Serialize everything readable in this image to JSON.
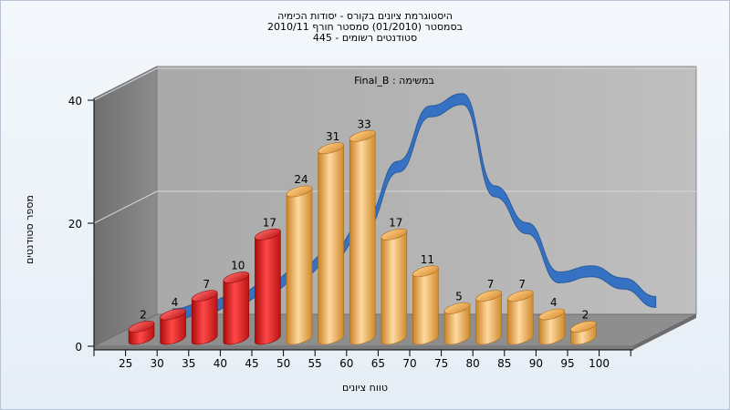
{
  "chart_data": {
    "type": "bar",
    "title": [
      "היסטוגרמת ציונים בקורס - יסודות הכימיה",
      "בסמסטר  (01/2010)  סמסטר חורף 2010/11",
      "445 - סטודנטים רשומים"
    ],
    "subtitle": "Final_B : במשימה",
    "xlabel": "טווח ציונים",
    "ylabel": "מספר סטודנטים",
    "x_ticks": [
      "25",
      "30",
      "35",
      "40",
      "45",
      "50",
      "55",
      "60",
      "65",
      "70",
      "75",
      "80",
      "85",
      "90",
      "95",
      "100"
    ],
    "y_ticks": [
      "0",
      "20",
      "40"
    ],
    "ylim": [
      0,
      40
    ],
    "bins": [
      {
        "label": "2",
        "value": 2,
        "color": "red"
      },
      {
        "label": "4",
        "value": 4,
        "color": "red"
      },
      {
        "label": "7",
        "value": 7,
        "color": "red"
      },
      {
        "label": "10",
        "value": 10,
        "color": "red"
      },
      {
        "label": "17",
        "value": 17,
        "color": "red"
      },
      {
        "label": "24",
        "value": 24,
        "color": "orange"
      },
      {
        "label": "31",
        "value": 31,
        "color": "orange"
      },
      {
        "label": "33",
        "value": 33,
        "color": "orange"
      },
      {
        "label": "17",
        "value": 17,
        "color": "orange"
      },
      {
        "label": "11",
        "value": 11,
        "color": "orange"
      },
      {
        "label": "5",
        "value": 5,
        "color": "orange"
      },
      {
        "label": "7",
        "value": 7,
        "color": "orange"
      },
      {
        "label": "7",
        "value": 7,
        "color": "orange"
      },
      {
        "label": "4",
        "value": 4,
        "color": "orange"
      },
      {
        "label": "2",
        "value": 2,
        "color": "orange"
      }
    ],
    "curve": [
      0,
      1,
      2.5,
      4.5,
      7,
      10,
      15,
      24,
      33,
      35,
      20,
      14,
      6,
      7,
      5,
      2
    ],
    "grid": true,
    "legend": "none",
    "colors": {
      "fail": "#e02020",
      "pass": "#e8a848",
      "curve": "#2f6fc4"
    }
  }
}
